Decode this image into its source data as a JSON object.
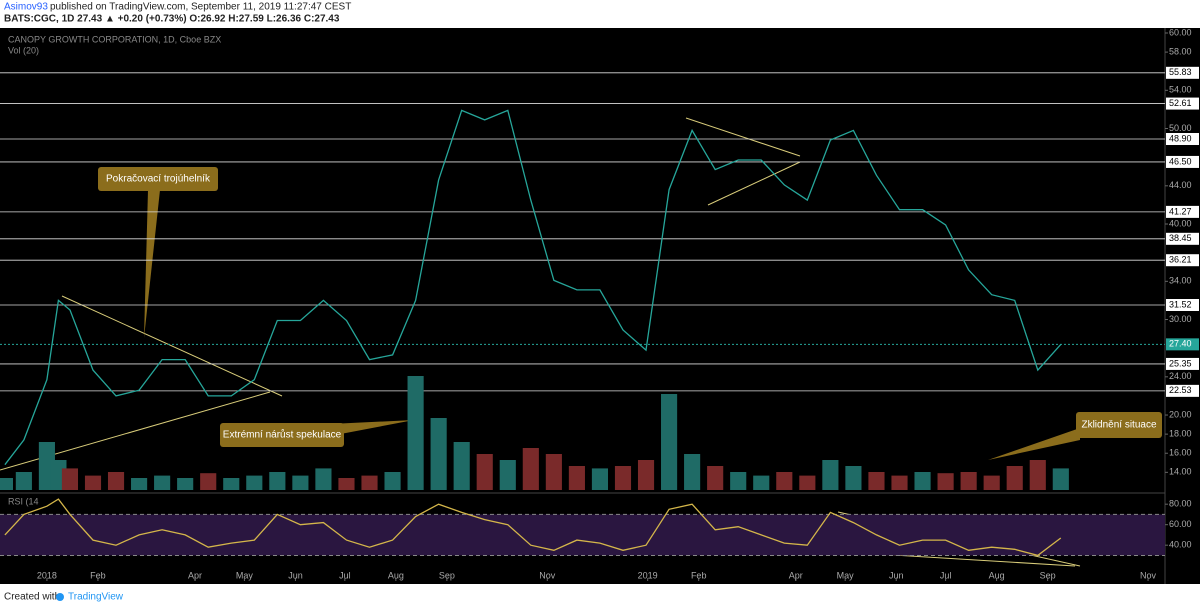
{
  "header": {
    "user": "Asimov93",
    "published": "published on TradingView.com, September 11, 2019 11:27:47 CEST",
    "symbol_line": "BATS:CGC, 1D 27.43 ▲ +0.20 (+0.73%) O:26.92 H:27.59 L:26.36 C:27.43"
  },
  "footer": {
    "created": "Created with",
    "brand": "TradingView"
  },
  "chart_data": {
    "type": "line",
    "title": "CANOPY GROWTH CORPORATION, 1D, Cboe BZX",
    "volume_label": "Vol (20)",
    "rsi_label": "RSI (14",
    "color": "#26a69a",
    "x": [
      -25.5,
      -14,
      0,
      7,
      14,
      28,
      42,
      56,
      70,
      84,
      98,
      112,
      126,
      140,
      154,
      168,
      182,
      196,
      210,
      224,
      238,
      252,
      266,
      280,
      294,
      308,
      322,
      336,
      350,
      364,
      378,
      392,
      406,
      420,
      434,
      448,
      462,
      476,
      490,
      504,
      518,
      532,
      546,
      560,
      574,
      588,
      602,
      616
    ],
    "values": [
      14.8,
      17.4,
      23.7,
      32,
      31,
      24.7,
      22,
      22.6,
      25.8,
      25.8,
      22,
      22,
      23.7,
      29.9,
      29.9,
      32,
      29.9,
      25.8,
      26.3,
      32,
      44.6,
      51.9,
      50.9,
      51.9,
      42.5,
      34.1,
      33.1,
      33.1,
      28.9,
      26.8,
      43.6,
      49.8,
      45.7,
      46.7,
      46.7,
      44.1,
      42.5,
      48.8,
      49.8,
      45.1,
      41.5,
      41.5,
      39.9,
      35.2,
      32.6,
      32,
      24.7,
      27.4
    ],
    "volume": [
      10,
      15,
      40,
      25,
      18,
      12,
      15,
      10,
      12,
      10,
      14,
      10,
      12,
      15,
      12,
      18,
      10,
      12,
      15,
      95,
      60,
      40,
      30,
      25,
      35,
      30,
      20,
      18,
      20,
      25,
      80,
      30,
      20,
      15,
      12,
      15,
      12,
      25,
      20,
      15,
      12,
      15,
      14,
      15,
      12,
      20,
      25,
      18
    ],
    "rsi": [
      50,
      70,
      78,
      85,
      70,
      45,
      40,
      50,
      55,
      50,
      38,
      42,
      45,
      70,
      60,
      62,
      45,
      38,
      45,
      68,
      80,
      72,
      65,
      60,
      40,
      35,
      45,
      42,
      35,
      40,
      75,
      80,
      55,
      58,
      50,
      42,
      40,
      72,
      62,
      50,
      40,
      45,
      45,
      35,
      38,
      36,
      30,
      47
    ],
    "rsi_color": "#d4b64a",
    "xlim": [
      -28.5,
      679.3
    ],
    "xticks": [
      {
        "value": 0,
        "label": "2018"
      },
      {
        "value": 31,
        "label": "Feb"
      },
      {
        "value": 90,
        "label": "Apr"
      },
      {
        "value": 120,
        "label": "May"
      },
      {
        "value": 151,
        "label": "Jun"
      },
      {
        "value": 181,
        "label": "Jul"
      },
      {
        "value": 212,
        "label": "Aug"
      },
      {
        "value": 243,
        "label": "Sep"
      },
      {
        "value": 304,
        "label": "Nov"
      },
      {
        "value": 365,
        "label": "2019"
      },
      {
        "value": 396,
        "label": "Feb"
      },
      {
        "value": 455,
        "label": "Apr"
      },
      {
        "value": 485,
        "label": "May"
      },
      {
        "value": 516,
        "label": "Jun"
      },
      {
        "value": 546,
        "label": "Jul"
      },
      {
        "value": 577,
        "label": "Aug"
      },
      {
        "value": 608,
        "label": "Sep"
      },
      {
        "value": 669,
        "label": "Nov"
      }
    ],
    "ylim": [
      12.15,
      61.57
    ],
    "yticks": [
      {
        "value": 14,
        "label": "14.00"
      },
      {
        "value": 16,
        "label": "16.00"
      },
      {
        "value": 18,
        "label": "18.00"
      },
      {
        "value": 20,
        "label": "20.00"
      },
      {
        "value": 24,
        "label": "24.00"
      },
      {
        "value": 30,
        "label": "30.00"
      },
      {
        "value": 34,
        "label": "34.00"
      },
      {
        "value": 40,
        "label": "40.00"
      },
      {
        "value": 44,
        "label": "44.00"
      },
      {
        "value": 50,
        "label": "50.00"
      },
      {
        "value": 54,
        "label": "54.00"
      },
      {
        "value": 58,
        "label": "58.00"
      },
      {
        "value": 60,
        "label": "60.00"
      }
    ],
    "levels": [
      {
        "value": 55.83,
        "label": "55.83"
      },
      {
        "value": 52.61,
        "label": "52.61"
      },
      {
        "value": 48.9,
        "label": "48.90"
      },
      {
        "value": 46.5,
        "label": "46.50"
      },
      {
        "value": 41.27,
        "label": "41.27"
      },
      {
        "value": 38.45,
        "label": "38.45"
      },
      {
        "value": 36.21,
        "label": "36.21"
      },
      {
        "value": 31.52,
        "label": "31.52"
      },
      {
        "value": 25.35,
        "label": "25.35"
      },
      {
        "value": 22.53,
        "label": "22.53"
      }
    ],
    "last": {
      "value": 27.4,
      "label": "27.40"
    },
    "vlim": [
      0,
      100
    ],
    "rsi_ylim": [
      8,
      87
    ],
    "rsi_yticks": [
      {
        "value": 40,
        "label": "40.00"
      },
      {
        "value": 60,
        "label": "60.00"
      },
      {
        "value": 80,
        "label": "80.00"
      }
    ],
    "rsi_bands": [
      30,
      70
    ],
    "annotations": [
      "Pokračovací trojúhelník",
      "Extrémní nárůst spekulace",
      "Zklidnění situace"
    ]
  }
}
